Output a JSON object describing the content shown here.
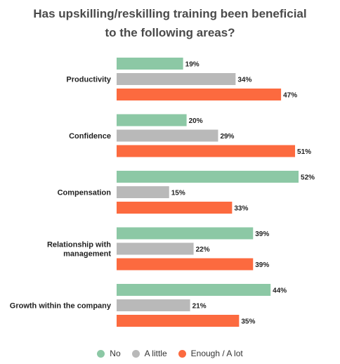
{
  "chart_data": {
    "type": "bar",
    "orientation": "horizontal",
    "title": "Has upskilling/reskilling training been beneficial to the following areas?",
    "title_lines": [
      "Has upskilling/reskilling training been beneficial",
      "to the following areas?"
    ],
    "categories": [
      [
        "Productivity"
      ],
      [
        "Confidence"
      ],
      [
        "Compensation"
      ],
      [
        "Relationship with",
        "management"
      ],
      [
        "Growth within the company"
      ]
    ],
    "series": [
      {
        "name": "No",
        "color": "#8cc8a5",
        "values": [
          19,
          20,
          52,
          39,
          44
        ]
      },
      {
        "name": "A little",
        "color": "#b9b9b9",
        "values": [
          34,
          29,
          15,
          22,
          21
        ]
      },
      {
        "name": "Enough / A lot",
        "color": "#fc6a3f",
        "values": [
          47,
          51,
          33,
          39,
          35
        ]
      }
    ],
    "value_suffix": "%",
    "xlim": [
      0,
      53
    ],
    "grid": false,
    "legend_position": "bottom"
  }
}
